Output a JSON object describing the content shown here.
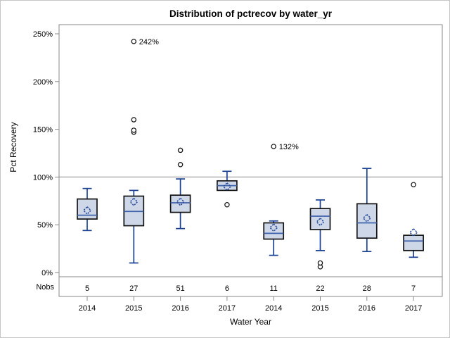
{
  "title": "Distribution of pctrecov by water_yr",
  "chart_data": {
    "type": "boxplot",
    "title": "Distribution of pctrecov by water_yr",
    "xlabel": "Water Year",
    "ylabel": "Pct Recovery",
    "nobs_label": "Nobs",
    "y_ticks": [
      {
        "value": 0,
        "label": "0%"
      },
      {
        "value": 50,
        "label": "50%"
      },
      {
        "value": 100,
        "label": "100%"
      },
      {
        "value": 150,
        "label": "150%"
      },
      {
        "value": 200,
        "label": "200%"
      },
      {
        "value": 250,
        "label": "250%"
      }
    ],
    "ylim": [
      0,
      258
    ],
    "reference_line": 100,
    "grid": false,
    "legend": "none",
    "groups": [
      {
        "category": "2014",
        "nobs": 5,
        "whisker_low": 44,
        "q1": 56,
        "median": 60,
        "mean": 65,
        "q3": 77,
        "whisker_high": 88,
        "outliers": []
      },
      {
        "category": "2015",
        "nobs": 27,
        "whisker_low": 10,
        "q1": 49,
        "median": 64,
        "mean": 74,
        "q3": 80,
        "whisker_high": 86,
        "outliers": [
          {
            "value": 147
          },
          {
            "value": 149
          },
          {
            "value": 160
          },
          {
            "value": 242,
            "label": "242%"
          }
        ]
      },
      {
        "category": "2016",
        "nobs": 51,
        "whisker_low": 46,
        "q1": 63,
        "median": 73,
        "mean": 74,
        "q3": 81,
        "whisker_high": 98,
        "outliers": [
          {
            "value": 113
          },
          {
            "value": 128
          }
        ]
      },
      {
        "category": "2017",
        "nobs": 6,
        "whisker_low": null,
        "q1": 86,
        "median": 91,
        "mean": 90,
        "q3": 96,
        "whisker_high": 106,
        "outliers": [
          {
            "value": 71
          }
        ]
      },
      {
        "category": "2014",
        "nobs": 11,
        "whisker_low": 18,
        "q1": 35,
        "median": 41,
        "mean": 47,
        "q3": 52,
        "whisker_high": 54,
        "outliers": [
          {
            "value": 132,
            "label": "132%"
          }
        ]
      },
      {
        "category": "2015",
        "nobs": 22,
        "whisker_low": 23,
        "q1": 45,
        "median": 59,
        "mean": 53,
        "q3": 67,
        "whisker_high": 76,
        "outliers": [
          {
            "value": 6
          },
          {
            "value": 10
          }
        ]
      },
      {
        "category": "2016",
        "nobs": 28,
        "whisker_low": 22,
        "q1": 36,
        "median": 52,
        "mean": 57,
        "q3": 72,
        "whisker_high": 109,
        "outliers": []
      },
      {
        "category": "2017",
        "nobs": 7,
        "whisker_low": 16,
        "q1": 23,
        "median": 33,
        "mean": 42,
        "q3": 39,
        "whisker_high": null,
        "outliers": [
          {
            "value": 92
          }
        ]
      }
    ],
    "colors": {
      "box_fill": "#cdd7e7",
      "box_stroke": "#131313",
      "whisker": "#1b4193",
      "median": "#3f62ab",
      "mean_marker": "#2b4d9c",
      "outlier_stroke": "#1c1c1c",
      "frame": "#8a8a8a",
      "reference_line": "#a3a3a3",
      "text": "#000000"
    }
  }
}
